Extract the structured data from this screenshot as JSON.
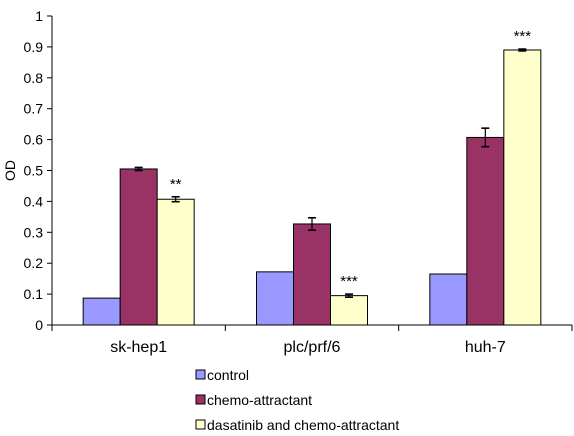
{
  "chart_data": {
    "type": "bar",
    "title": "",
    "xlabel": "",
    "ylabel": "OD",
    "ylim": [
      0,
      1
    ],
    "yticks": [
      "0",
      "0.1",
      "0.2",
      "0.3",
      "0.4",
      "0.5",
      "0.6",
      "0.7",
      "0.8",
      "0.9",
      "1"
    ],
    "categories": [
      "sk-hep1",
      "plc/prf/6",
      "huh-7"
    ],
    "series": [
      {
        "name": "control",
        "color": "#9999ff",
        "values": [
          0.087,
          0.172,
          0.165
        ],
        "errors": [
          0,
          0,
          0
        ]
      },
      {
        "name": "chemo-attractant",
        "color": "#993366",
        "values": [
          0.505,
          0.327,
          0.607
        ],
        "errors": [
          0.005,
          0.02,
          0.03
        ]
      },
      {
        "name": "dasatinib and chemo-attractant",
        "color": "#ffffcc",
        "values": [
          0.407,
          0.095,
          0.89
        ],
        "errors": [
          0.008,
          0.005,
          0.003
        ]
      }
    ],
    "annotations": [
      {
        "category": "sk-hep1",
        "series": 2,
        "text": "**"
      },
      {
        "category": "plc/prf/6",
        "series": 2,
        "text": "***"
      },
      {
        "category": "huh-7",
        "series": 2,
        "text": "***"
      }
    ],
    "grid": false,
    "legend_position": "bottom-center"
  }
}
